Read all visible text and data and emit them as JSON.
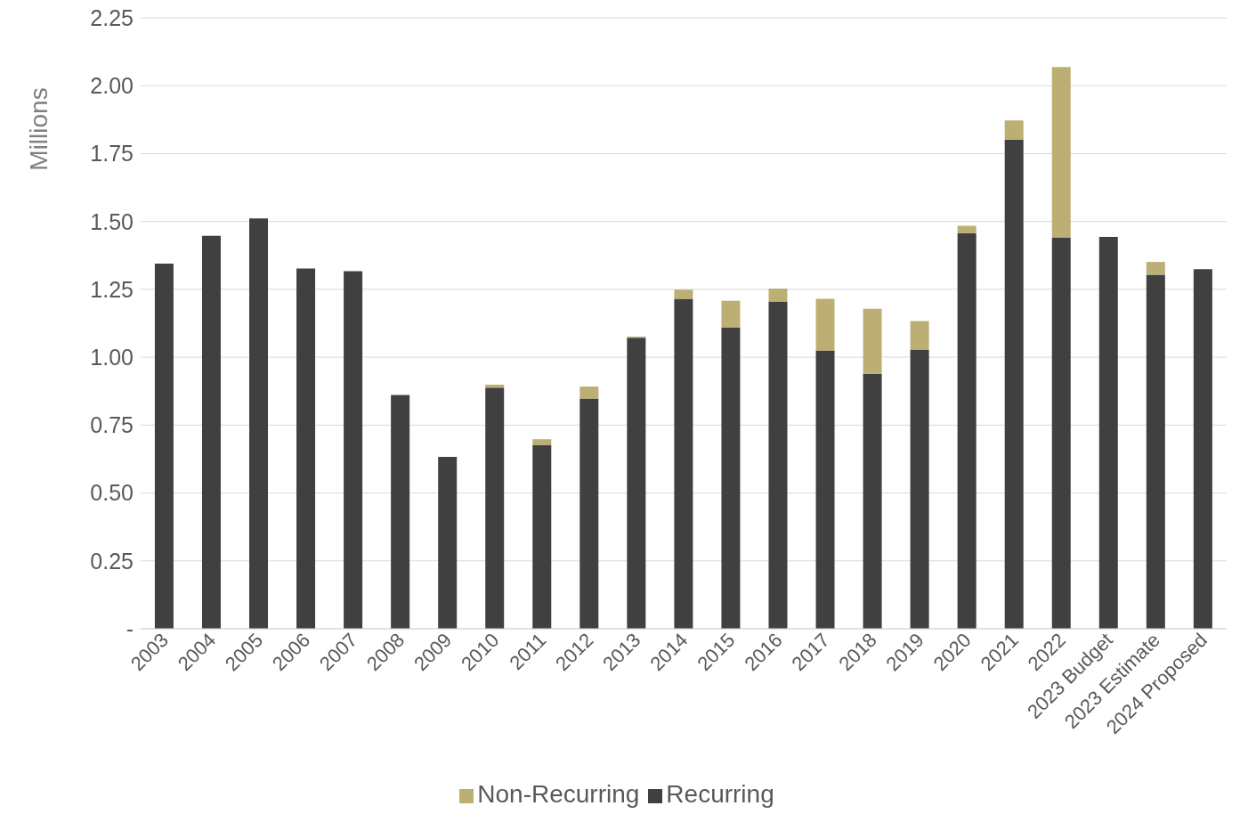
{
  "chart_data": {
    "type": "bar",
    "stacked": true,
    "ylabel": "Millions",
    "categories": [
      "2003",
      "2004",
      "2005",
      "2006",
      "2007",
      "2008",
      "2009",
      "2010",
      "2011",
      "2012",
      "2013",
      "2014",
      "2015",
      "2016",
      "2017",
      "2018",
      "2019",
      "2020",
      "2021",
      "2022",
      "2023 Budget",
      "2023 Estimate",
      "2024 Proposed"
    ],
    "series": [
      {
        "name": "Recurring",
        "color": "#404040",
        "values": [
          1.345,
          1.447,
          1.511,
          1.327,
          1.317,
          0.861,
          0.633,
          0.888,
          0.677,
          0.848,
          1.072,
          1.215,
          1.11,
          1.205,
          1.025,
          0.939,
          1.028,
          1.457,
          1.801,
          1.44,
          1.443,
          1.304,
          1.324
        ]
      },
      {
        "name": "Non-Recurring",
        "color": "#bdaf74",
        "values": [
          null,
          null,
          null,
          null,
          null,
          null,
          null,
          0.011,
          0.021,
          0.044,
          0.004,
          0.034,
          0.098,
          0.048,
          0.19,
          0.239,
          0.105,
          0.027,
          0.071,
          0.629,
          null,
          0.047,
          null
        ]
      }
    ],
    "ylim": [
      0,
      2.25
    ],
    "yticks": [
      {
        "value": 0,
        "label": "-"
      },
      {
        "value": 0.25,
        "label": "0.25"
      },
      {
        "value": 0.5,
        "label": "0.50"
      },
      {
        "value": 0.75,
        "label": "0.75"
      },
      {
        "value": 1,
        "label": "1.00"
      },
      {
        "value": 1.25,
        "label": "1.25"
      },
      {
        "value": 1.5,
        "label": "1.50"
      },
      {
        "value": 1.75,
        "label": "1.75"
      },
      {
        "value": 2,
        "label": "2.00"
      },
      {
        "value": 2.25,
        "label": "2.25"
      }
    ],
    "grid": "y",
    "legend": "bottom"
  }
}
